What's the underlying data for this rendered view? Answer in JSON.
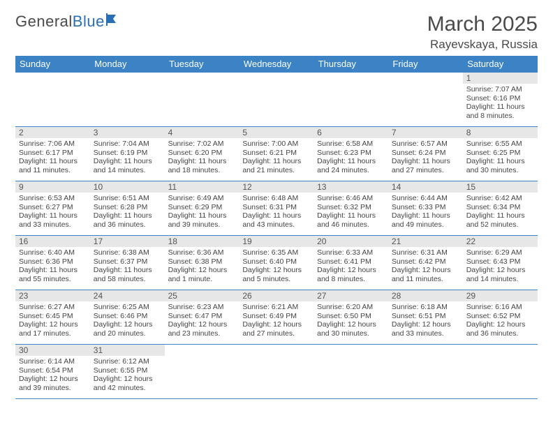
{
  "logo": {
    "textA": "General",
    "textB": "Blue"
  },
  "title": "March 2025",
  "location": "Rayevskaya, Russia",
  "colors": {
    "headerBg": "#3b83c4",
    "dayBarBg": "#e7e7e7",
    "border": "#3b83c4",
    "textDark": "#4a4a4a"
  },
  "daysOfWeek": [
    "Sunday",
    "Monday",
    "Tuesday",
    "Wednesday",
    "Thursday",
    "Friday",
    "Saturday"
  ],
  "startOffset": 6,
  "cells": [
    {
      "n": 1,
      "sr": "7:07 AM",
      "ss": "6:16 PM",
      "dl": "11 hours and 8 minutes."
    },
    {
      "n": 2,
      "sr": "7:06 AM",
      "ss": "6:17 PM",
      "dl": "11 hours and 11 minutes."
    },
    {
      "n": 3,
      "sr": "7:04 AM",
      "ss": "6:19 PM",
      "dl": "11 hours and 14 minutes."
    },
    {
      "n": 4,
      "sr": "7:02 AM",
      "ss": "6:20 PM",
      "dl": "11 hours and 18 minutes."
    },
    {
      "n": 5,
      "sr": "7:00 AM",
      "ss": "6:21 PM",
      "dl": "11 hours and 21 minutes."
    },
    {
      "n": 6,
      "sr": "6:58 AM",
      "ss": "6:23 PM",
      "dl": "11 hours and 24 minutes."
    },
    {
      "n": 7,
      "sr": "6:57 AM",
      "ss": "6:24 PM",
      "dl": "11 hours and 27 minutes."
    },
    {
      "n": 8,
      "sr": "6:55 AM",
      "ss": "6:25 PM",
      "dl": "11 hours and 30 minutes."
    },
    {
      "n": 9,
      "sr": "6:53 AM",
      "ss": "6:27 PM",
      "dl": "11 hours and 33 minutes."
    },
    {
      "n": 10,
      "sr": "6:51 AM",
      "ss": "6:28 PM",
      "dl": "11 hours and 36 minutes."
    },
    {
      "n": 11,
      "sr": "6:49 AM",
      "ss": "6:29 PM",
      "dl": "11 hours and 39 minutes."
    },
    {
      "n": 12,
      "sr": "6:48 AM",
      "ss": "6:31 PM",
      "dl": "11 hours and 43 minutes."
    },
    {
      "n": 13,
      "sr": "6:46 AM",
      "ss": "6:32 PM",
      "dl": "11 hours and 46 minutes."
    },
    {
      "n": 14,
      "sr": "6:44 AM",
      "ss": "6:33 PM",
      "dl": "11 hours and 49 minutes."
    },
    {
      "n": 15,
      "sr": "6:42 AM",
      "ss": "6:34 PM",
      "dl": "11 hours and 52 minutes."
    },
    {
      "n": 16,
      "sr": "6:40 AM",
      "ss": "6:36 PM",
      "dl": "11 hours and 55 minutes."
    },
    {
      "n": 17,
      "sr": "6:38 AM",
      "ss": "6:37 PM",
      "dl": "11 hours and 58 minutes."
    },
    {
      "n": 18,
      "sr": "6:36 AM",
      "ss": "6:38 PM",
      "dl": "12 hours and 1 minute."
    },
    {
      "n": 19,
      "sr": "6:35 AM",
      "ss": "6:40 PM",
      "dl": "12 hours and 5 minutes."
    },
    {
      "n": 20,
      "sr": "6:33 AM",
      "ss": "6:41 PM",
      "dl": "12 hours and 8 minutes."
    },
    {
      "n": 21,
      "sr": "6:31 AM",
      "ss": "6:42 PM",
      "dl": "12 hours and 11 minutes."
    },
    {
      "n": 22,
      "sr": "6:29 AM",
      "ss": "6:43 PM",
      "dl": "12 hours and 14 minutes."
    },
    {
      "n": 23,
      "sr": "6:27 AM",
      "ss": "6:45 PM",
      "dl": "12 hours and 17 minutes."
    },
    {
      "n": 24,
      "sr": "6:25 AM",
      "ss": "6:46 PM",
      "dl": "12 hours and 20 minutes."
    },
    {
      "n": 25,
      "sr": "6:23 AM",
      "ss": "6:47 PM",
      "dl": "12 hours and 23 minutes."
    },
    {
      "n": 26,
      "sr": "6:21 AM",
      "ss": "6:49 PM",
      "dl": "12 hours and 27 minutes."
    },
    {
      "n": 27,
      "sr": "6:20 AM",
      "ss": "6:50 PM",
      "dl": "12 hours and 30 minutes."
    },
    {
      "n": 28,
      "sr": "6:18 AM",
      "ss": "6:51 PM",
      "dl": "12 hours and 33 minutes."
    },
    {
      "n": 29,
      "sr": "6:16 AM",
      "ss": "6:52 PM",
      "dl": "12 hours and 36 minutes."
    },
    {
      "n": 30,
      "sr": "6:14 AM",
      "ss": "6:54 PM",
      "dl": "12 hours and 39 minutes."
    },
    {
      "n": 31,
      "sr": "6:12 AM",
      "ss": "6:55 PM",
      "dl": "12 hours and 42 minutes."
    }
  ],
  "labels": {
    "sunrise": "Sunrise: ",
    "sunset": "Sunset: ",
    "daylight": "Daylight: "
  }
}
